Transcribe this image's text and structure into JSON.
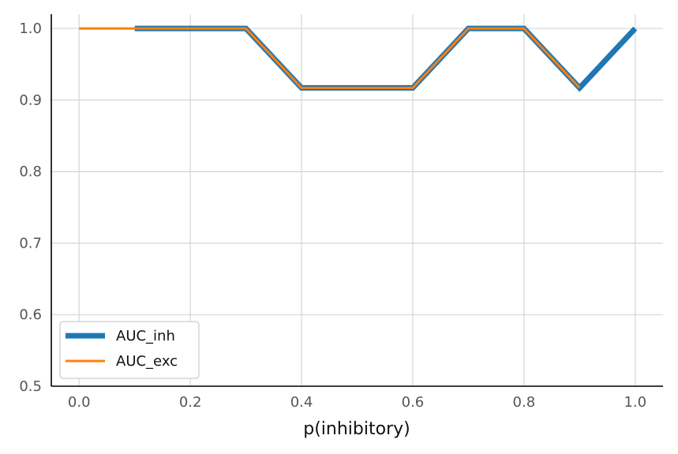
{
  "chart_data": {
    "type": "line",
    "title": "",
    "xlabel": "p(inhibitory)",
    "ylabel": "",
    "xlim": [
      -0.05,
      1.05
    ],
    "ylim": [
      0.5,
      1.02
    ],
    "x_ticks": [
      "0.0",
      "0.2",
      "0.4",
      "0.6",
      "0.8",
      "1.0"
    ],
    "y_ticks": [
      "0.5",
      "0.6",
      "0.7",
      "0.8",
      "0.9",
      "1.0"
    ],
    "grid": true,
    "legend_position": "lower-left",
    "series": [
      {
        "name": "AUC_inh",
        "color": "#1f77b4",
        "x": [
          0.1,
          0.2,
          0.3,
          0.4,
          0.5,
          0.6,
          0.7,
          0.8,
          0.9,
          1.0
        ],
        "y": [
          1.0,
          1.0,
          1.0,
          0.917,
          0.917,
          0.917,
          1.0,
          1.0,
          0.917,
          1.0
        ]
      },
      {
        "name": "AUC_exc",
        "color": "#ff7f0e",
        "x": [
          0.0,
          0.1,
          0.2,
          0.3,
          0.4,
          0.5,
          0.6,
          0.7,
          0.8,
          0.9
        ],
        "y": [
          1.0,
          1.0,
          1.0,
          1.0,
          0.917,
          0.917,
          0.917,
          1.0,
          1.0,
          0.917
        ]
      }
    ]
  }
}
